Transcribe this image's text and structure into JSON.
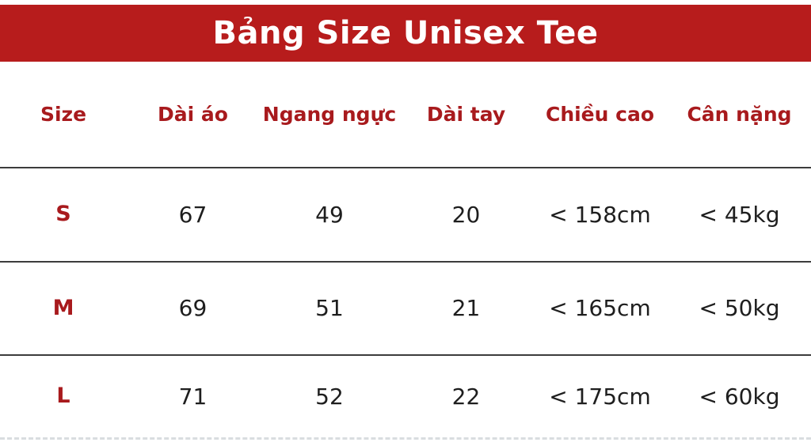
{
  "header": {
    "title": "Bảng Size Unisex Tee"
  },
  "table": {
    "columns": [
      "Size",
      "Dài áo",
      "Ngang ngực",
      "Dài tay",
      "Chiều cao",
      "Cân nặng"
    ],
    "rows": [
      {
        "size": "S",
        "cells": [
          "67",
          "49",
          "20",
          "< 158cm",
          "< 45kg"
        ]
      },
      {
        "size": "M",
        "cells": [
          "69",
          "51",
          "21",
          "< 165cm",
          "< 50kg"
        ]
      },
      {
        "size": "L",
        "cells": [
          "71",
          "52",
          "22",
          "< 175cm",
          "< 60kg"
        ]
      }
    ]
  },
  "colors": {
    "header-bg": "#B71C1C",
    "accent-red": "#A81A1D",
    "data-text": "#1E1E1E",
    "line": "#3C3C3C",
    "dashed-line": "#D9DDE0"
  }
}
